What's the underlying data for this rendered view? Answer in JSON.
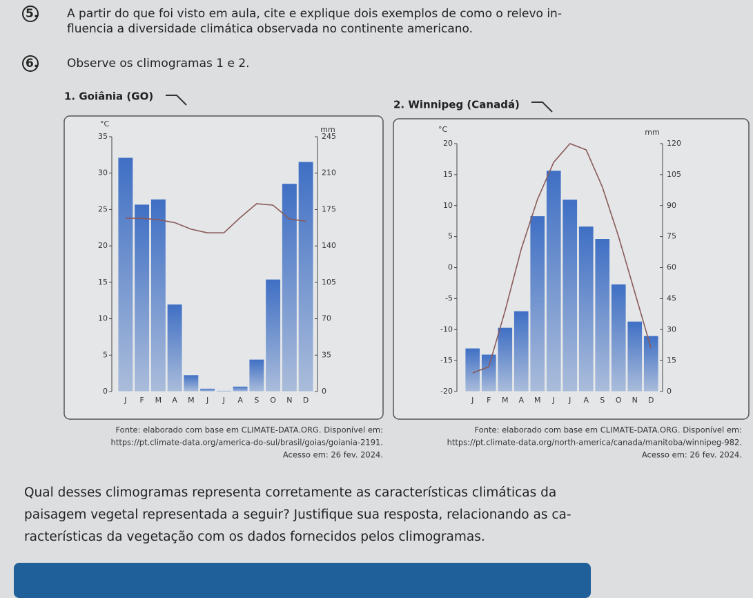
{
  "questions": [
    {
      "number": "5.",
      "lines": [
        "A partir do que foi visto em aula, cite e explique dois exemplos de como o relevo in-",
        "fluencia a diversidade climática observada no continente americano."
      ]
    },
    {
      "number": "6.",
      "lines": [
        "Observe os climogramas 1 e 2."
      ]
    }
  ],
  "chart_data": [
    {
      "type": "combo",
      "title": "1. Goiânia (GO)",
      "ylabel": "°C",
      "y2label": "mm",
      "categories": [
        "J",
        "F",
        "M",
        "A",
        "M",
        "J",
        "J",
        "A",
        "S",
        "O",
        "N",
        "D"
      ],
      "ylim": [
        0,
        35
      ],
      "yticks": [
        0,
        5,
        10,
        15,
        20,
        25,
        30,
        35
      ],
      "y2lim": [
        0,
        245
      ],
      "y2ticks": [
        0,
        35,
        70,
        105,
        140,
        175,
        210,
        245
      ],
      "series": [
        {
          "type": "bar",
          "axis": "y2",
          "color": "#3f6fc4",
          "values": [
            225,
            180,
            185,
            84,
            16,
            3,
            1,
            5,
            31,
            108,
            200,
            221
          ]
        },
        {
          "type": "line",
          "axis": "y",
          "color": "#8a5a5a",
          "values": [
            23.8,
            23.8,
            23.6,
            23.2,
            22.3,
            21.8,
            21.8,
            23.9,
            25.8,
            25.6,
            23.7,
            23.4
          ]
        }
      ]
    },
    {
      "type": "combo",
      "title": "2. Winnipeg (Canadá)",
      "ylabel": "°C",
      "y2label": "mm",
      "categories": [
        "J",
        "F",
        "M",
        "A",
        "M",
        "J",
        "J",
        "A",
        "S",
        "O",
        "N",
        "D"
      ],
      "ylim": [
        -20,
        20
      ],
      "yticks": [
        -20,
        -15,
        -10,
        -5,
        0,
        5,
        10,
        15,
        20
      ],
      "y2lim": [
        0,
        120
      ],
      "y2ticks": [
        0,
        15,
        30,
        45,
        60,
        75,
        90,
        105,
        120
      ],
      "series": [
        {
          "type": "bar",
          "axis": "y2",
          "color": "#3f6fc4",
          "values": [
            21,
            18,
            31,
            39,
            85,
            107,
            93,
            80,
            74,
            52,
            34,
            27
          ]
        },
        {
          "type": "line",
          "axis": "y",
          "color": "#8a5a5a",
          "values": [
            -17,
            -16,
            -7,
            3,
            11,
            17,
            20,
            19,
            13,
            5,
            -4,
            -13
          ]
        }
      ]
    }
  ],
  "sources": [
    [
      "Fonte: elaborado com base em CLIMATE-DATA.ORG. Disponível em:",
      "https://pt.climate-data.org/america-do-sul/brasil/goias/goiania-2191.",
      "Acesso em: 26 fev. 2024."
    ],
    [
      "Fonte: elaborado com base em CLIMATE-DATA.ORG. Disponível em:",
      "https://pt.climate-data.org/north-america/canada/manitoba/winnipeg-982.",
      "Acesso em: 26 fev. 2024."
    ]
  ],
  "final_question": [
    "Qual desses climogramas representa corretamente as características climáticas da",
    "paisagem vegetal representada a seguir? Justifique sua resposta, relacionando as ca-",
    "racterísticas da vegetação com os dados fornecidos pelos climogramas."
  ]
}
